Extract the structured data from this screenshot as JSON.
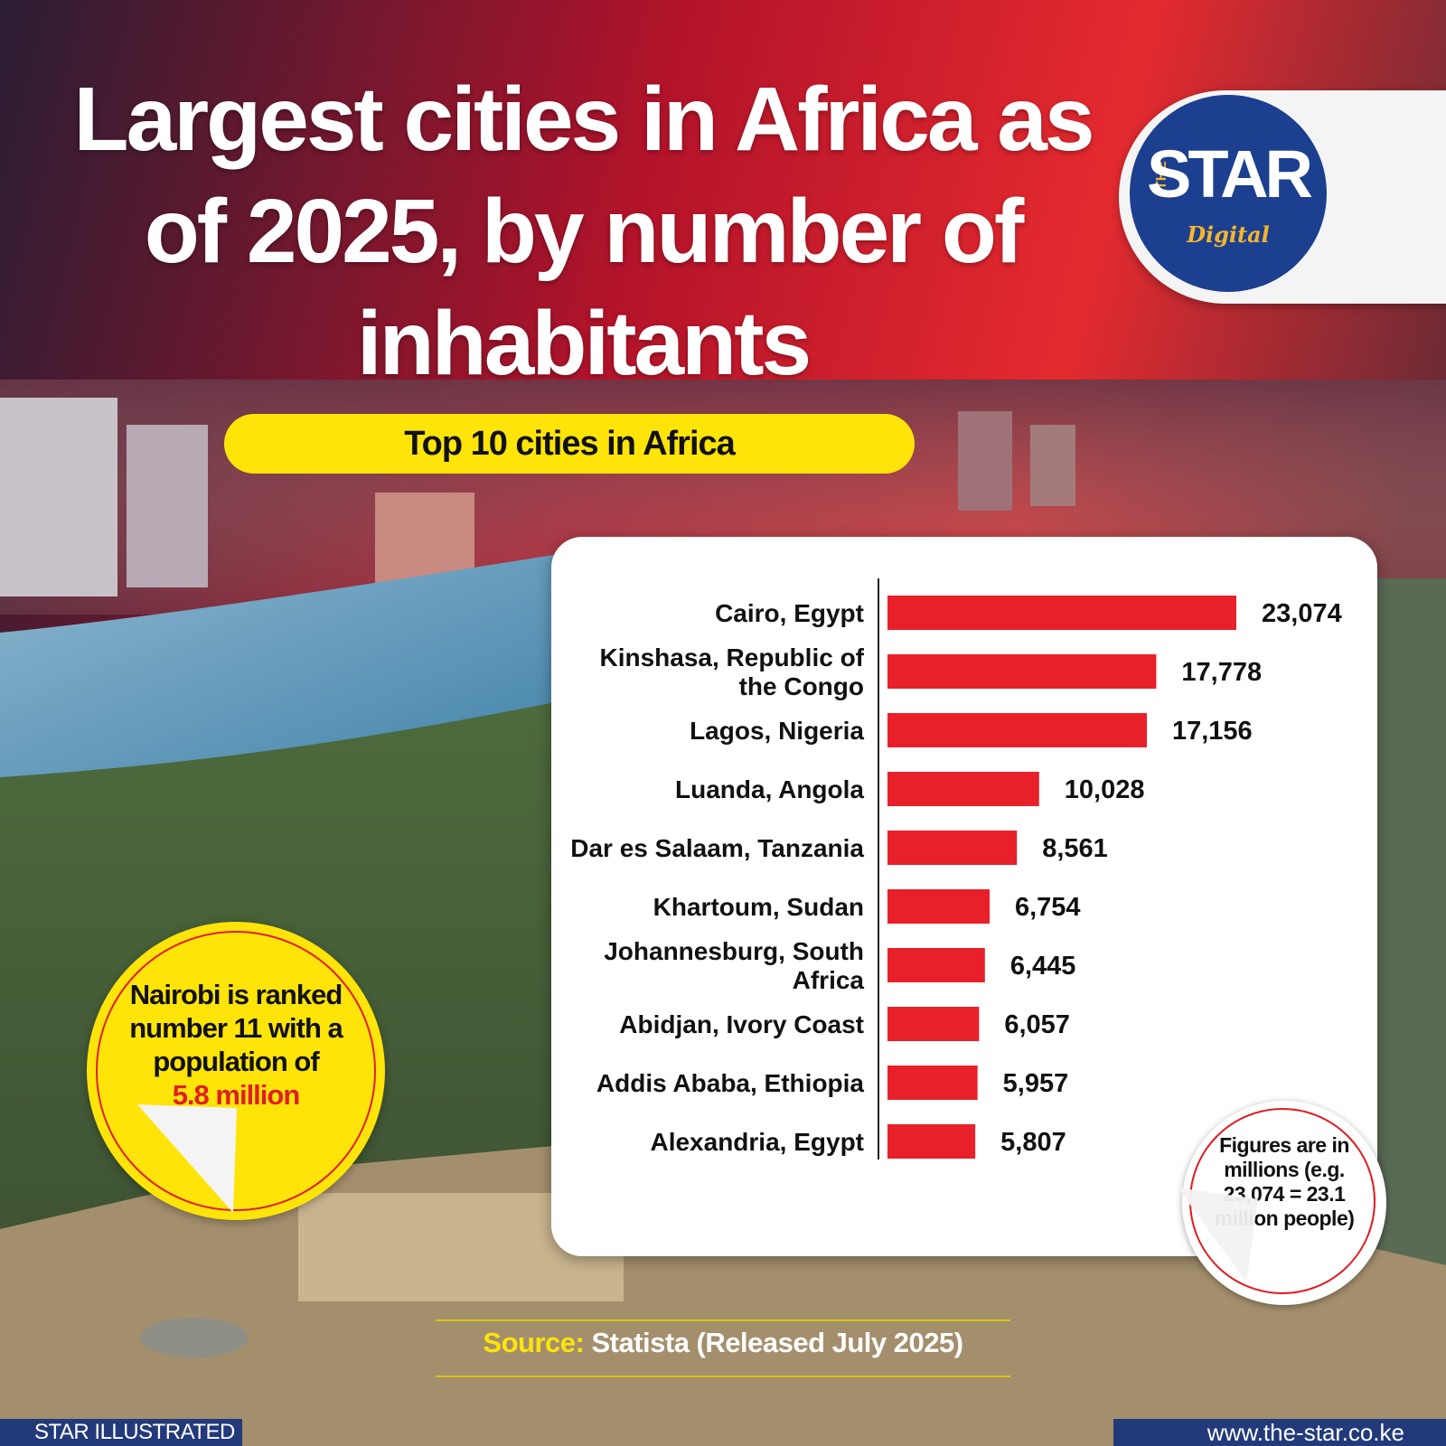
{
  "title": "Largest cities in Africa as of 2025, by number of inhabitants",
  "subtitle_pill": "Top 10 cities in Africa",
  "logo": {
    "the": "THE",
    "star": "STAR",
    "digital": "Digital"
  },
  "chart_data": {
    "type": "bar",
    "orientation": "horizontal",
    "title": "Largest cities in Africa as of 2025, by number of inhabitants",
    "categories": [
      [
        "Cairo, Egypt"
      ],
      [
        "Kinshasa, Republic of",
        "the Congo"
      ],
      [
        "Lagos, Nigeria"
      ],
      [
        "Luanda, Angola"
      ],
      [
        "Dar es Salaam, Tanzania"
      ],
      [
        "Khartoum, Sudan"
      ],
      [
        "Johannesburg, South",
        "Africa"
      ],
      [
        "Abidjan, Ivory Coast"
      ],
      [
        "Addis Ababa, Ethiopia"
      ],
      [
        "Alexandria, Egypt"
      ]
    ],
    "values": [
      23.074,
      17.778,
      17.156,
      10.028,
      8.561,
      6.754,
      6.445,
      6.057,
      5.957,
      5.807
    ],
    "value_labels": [
      "23,074",
      "17,778",
      "17,156",
      "10,028",
      "8,561",
      "6,754",
      "6,445",
      "6,057",
      "5,957",
      "5,807"
    ],
    "unit": "millions",
    "xlim": [
      0,
      23.074
    ],
    "legend": "none",
    "grid": false,
    "bar_color": "#e8202a"
  },
  "note": "Figures are in millions (e.g. 23,074 = 23.1 million people)",
  "nairobi": {
    "text": "Nairobi is ranked number 11 with a population of",
    "highlight": "5.8 million"
  },
  "source": {
    "label": "Source:",
    "text": " Statista (Released July 2025)"
  },
  "footer": {
    "left": "STAR ILLUSTRATED",
    "right": "www.the-star.co.ke"
  },
  "colors": {
    "red": "#e8202a",
    "yellow": "#ffe40a",
    "navy": "#223a7a"
  }
}
